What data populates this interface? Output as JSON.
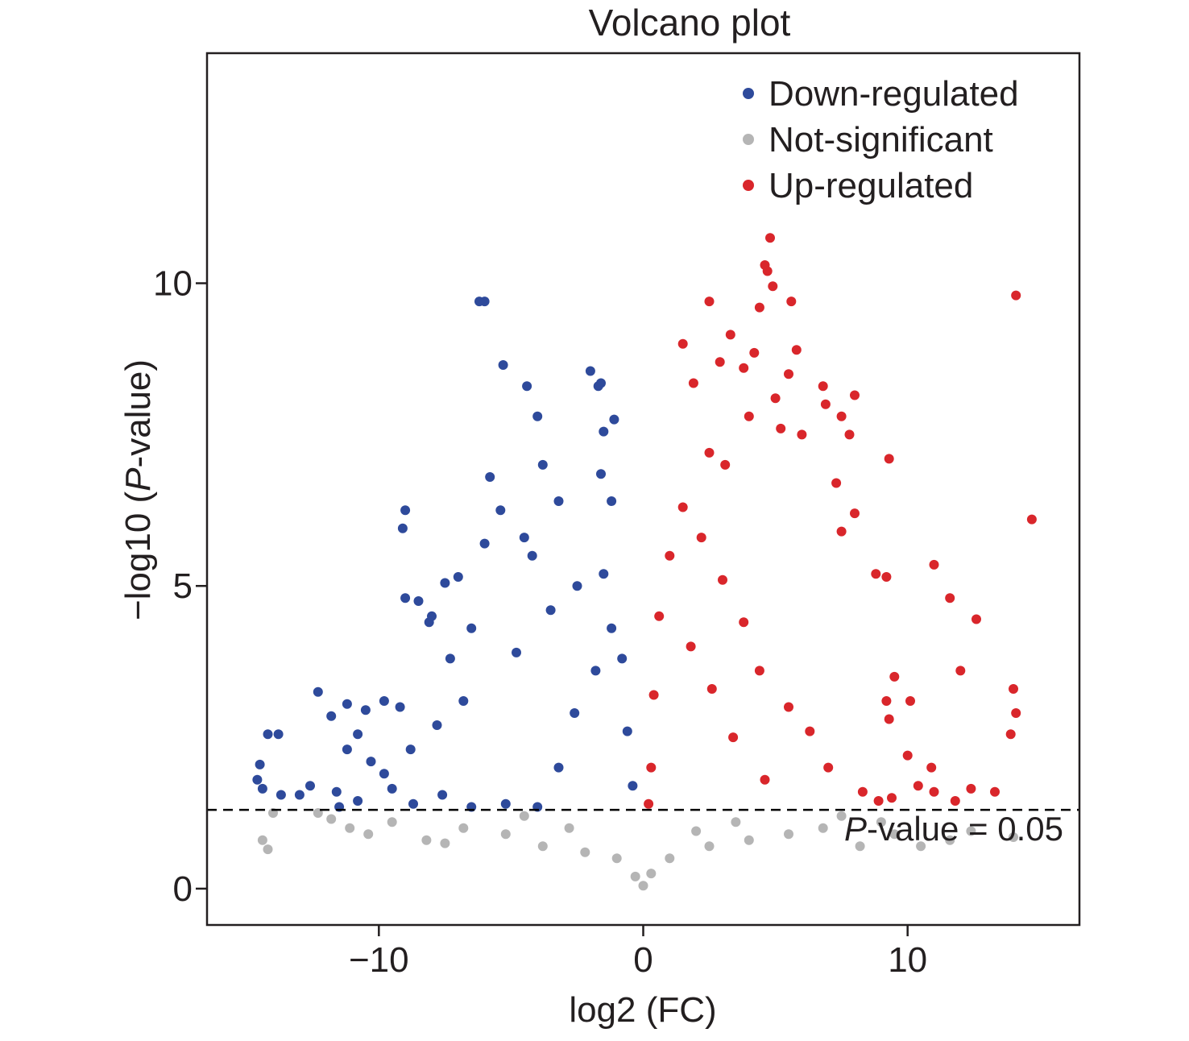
{
  "chart_data": {
    "type": "scatter",
    "title": "Volcano plot",
    "xlabel": "log2 (FC)",
    "ylabel_parts": [
      "−log10 (",
      "P",
      "-value)"
    ],
    "xlim": [
      -16.5,
      16.5
    ],
    "ylim": [
      -0.6,
      13.8
    ],
    "x_ticks": [
      -10,
      0,
      10
    ],
    "x_tick_labels": [
      "−10",
      "0",
      "10"
    ],
    "y_ticks": [
      0,
      5,
      10
    ],
    "y_tick_labels": [
      "0",
      "5",
      "10"
    ],
    "grid": false,
    "legend_position": "top-right",
    "threshold": {
      "y": 1.301,
      "style": "dashed",
      "label_parts": [
        "P",
        "-value = 0.05"
      ]
    },
    "series": [
      {
        "name": "Down-regulated",
        "color": "#2e4a9b",
        "sample_points": [
          [
            -14.2,
            2.55
          ],
          [
            -13.8,
            2.55
          ],
          [
            -14.5,
            2.05
          ],
          [
            -14.6,
            1.8
          ],
          [
            -14.4,
            1.65
          ],
          [
            -13.7,
            1.55
          ],
          [
            -12.3,
            3.25
          ],
          [
            -11.8,
            2.85
          ],
          [
            -11.2,
            3.05
          ],
          [
            -10.5,
            2.95
          ],
          [
            -9.8,
            3.1
          ],
          [
            -9.2,
            3.0
          ],
          [
            -9.0,
            4.8
          ],
          [
            -8.5,
            4.75
          ],
          [
            -8.1,
            4.4
          ],
          [
            -7.5,
            5.05
          ],
          [
            -7.0,
            5.15
          ],
          [
            -9.0,
            6.25
          ],
          [
            -9.1,
            5.95
          ],
          [
            -8.0,
            4.5
          ],
          [
            -6.0,
            9.7
          ],
          [
            -6.2,
            9.7
          ],
          [
            -5.3,
            8.65
          ],
          [
            -4.4,
            8.3
          ],
          [
            -4.0,
            7.8
          ],
          [
            -2.0,
            8.55
          ],
          [
            -1.6,
            8.35
          ],
          [
            -1.7,
            8.3
          ],
          [
            -1.1,
            7.75
          ],
          [
            -1.5,
            7.55
          ],
          [
            -3.8,
            7.0
          ],
          [
            -5.8,
            6.8
          ],
          [
            -1.6,
            6.85
          ],
          [
            -1.2,
            6.4
          ],
          [
            -3.2,
            6.4
          ],
          [
            -5.4,
            6.25
          ],
          [
            -4.5,
            5.8
          ],
          [
            -4.2,
            5.5
          ],
          [
            -6.0,
            5.7
          ],
          [
            -6.5,
            4.3
          ],
          [
            -7.3,
            3.8
          ],
          [
            -10.8,
            2.55
          ],
          [
            -11.2,
            2.3
          ],
          [
            -10.3,
            2.1
          ],
          [
            -9.5,
            1.65
          ],
          [
            -11.6,
            1.6
          ],
          [
            -12.6,
            1.7
          ],
          [
            -13.0,
            1.55
          ],
          [
            -11.5,
            1.35
          ],
          [
            -10.8,
            1.45
          ],
          [
            -8.7,
            1.4
          ],
          [
            -7.6,
            1.55
          ],
          [
            -6.5,
            1.35
          ],
          [
            -5.2,
            1.4
          ],
          [
            -4.0,
            1.35
          ],
          [
            -3.2,
            2.0
          ],
          [
            -2.6,
            2.9
          ],
          [
            -1.8,
            3.6
          ],
          [
            -1.2,
            4.3
          ],
          [
            -0.8,
            3.8
          ],
          [
            -0.6,
            2.6
          ],
          [
            -0.4,
            1.7
          ],
          [
            -1.5,
            5.2
          ],
          [
            -2.5,
            5.0
          ],
          [
            -3.5,
            4.6
          ],
          [
            -4.8,
            3.9
          ],
          [
            -6.8,
            3.1
          ],
          [
            -7.8,
            2.7
          ],
          [
            -8.8,
            2.3
          ],
          [
            -9.8,
            1.9
          ]
        ]
      },
      {
        "name": "Not-significant",
        "color": "#b5b5b5",
        "sample_points": [
          [
            -14.0,
            1.25
          ],
          [
            -14.4,
            0.8
          ],
          [
            -14.2,
            0.65
          ],
          [
            -12.3,
            1.25
          ],
          [
            -11.8,
            1.15
          ],
          [
            -11.1,
            1.0
          ],
          [
            -10.4,
            0.9
          ],
          [
            -9.5,
            1.1
          ],
          [
            -8.2,
            0.8
          ],
          [
            -6.8,
            1.0
          ],
          [
            -5.2,
            0.9
          ],
          [
            -3.8,
            0.7
          ],
          [
            -2.2,
            0.6
          ],
          [
            -1.0,
            0.5
          ],
          [
            -0.3,
            0.2
          ],
          [
            0.0,
            0.05
          ],
          [
            0.3,
            0.25
          ],
          [
            1.0,
            0.5
          ],
          [
            2.5,
            0.7
          ],
          [
            4.0,
            0.8
          ],
          [
            5.5,
            0.9
          ],
          [
            6.8,
            1.0
          ],
          [
            8.2,
            0.7
          ],
          [
            9.0,
            1.1
          ],
          [
            9.5,
            0.9
          ],
          [
            10.5,
            0.7
          ],
          [
            11.6,
            0.8
          ],
          [
            12.4,
            0.95
          ],
          [
            14.0,
            0.85
          ],
          [
            7.5,
            1.2
          ],
          [
            -4.5,
            1.2
          ],
          [
            -7.5,
            0.75
          ],
          [
            3.5,
            1.1
          ],
          [
            -2.8,
            1.0
          ],
          [
            2.0,
            0.95
          ]
        ]
      },
      {
        "name": "Up-regulated",
        "color": "#d9262b",
        "sample_points": [
          [
            4.8,
            10.75
          ],
          [
            4.6,
            10.3
          ],
          [
            4.7,
            10.2
          ],
          [
            4.9,
            9.95
          ],
          [
            4.4,
            9.6
          ],
          [
            2.5,
            9.7
          ],
          [
            5.6,
            9.7
          ],
          [
            3.3,
            9.15
          ],
          [
            1.5,
            9.0
          ],
          [
            14.1,
            9.8
          ],
          [
            2.9,
            8.7
          ],
          [
            4.2,
            8.85
          ],
          [
            3.8,
            8.6
          ],
          [
            5.8,
            8.9
          ],
          [
            1.9,
            8.35
          ],
          [
            5.5,
            8.5
          ],
          [
            6.8,
            8.3
          ],
          [
            6.9,
            8.0
          ],
          [
            8.0,
            8.15
          ],
          [
            7.5,
            7.8
          ],
          [
            5.0,
            8.1
          ],
          [
            4.0,
            7.8
          ],
          [
            5.2,
            7.6
          ],
          [
            6.0,
            7.5
          ],
          [
            7.8,
            7.5
          ],
          [
            9.3,
            7.1
          ],
          [
            2.5,
            7.2
          ],
          [
            3.1,
            7.0
          ],
          [
            14.7,
            6.1
          ],
          [
            7.3,
            6.7
          ],
          [
            8.0,
            6.2
          ],
          [
            7.5,
            5.9
          ],
          [
            11.0,
            5.35
          ],
          [
            9.2,
            5.15
          ],
          [
            8.8,
            5.2
          ],
          [
            12.0,
            3.6
          ],
          [
            11.6,
            4.8
          ],
          [
            12.6,
            4.45
          ],
          [
            9.5,
            3.5
          ],
          [
            9.2,
            3.1
          ],
          [
            10.1,
            3.1
          ],
          [
            14.0,
            3.3
          ],
          [
            14.1,
            2.9
          ],
          [
            13.9,
            2.55
          ],
          [
            9.3,
            2.8
          ],
          [
            10.0,
            2.2
          ],
          [
            10.4,
            1.7
          ],
          [
            10.9,
            2.0
          ],
          [
            11.0,
            1.6
          ],
          [
            12.4,
            1.65
          ],
          [
            13.3,
            1.6
          ],
          [
            11.8,
            1.45
          ],
          [
            9.4,
            1.5
          ],
          [
            8.9,
            1.45
          ],
          [
            8.3,
            1.6
          ],
          [
            7.0,
            2.0
          ],
          [
            6.3,
            2.6
          ],
          [
            5.5,
            3.0
          ],
          [
            4.4,
            3.6
          ],
          [
            3.8,
            4.4
          ],
          [
            3.0,
            5.1
          ],
          [
            2.2,
            5.8
          ],
          [
            1.5,
            6.3
          ],
          [
            1.0,
            5.5
          ],
          [
            0.6,
            4.5
          ],
          [
            0.4,
            3.2
          ],
          [
            0.3,
            2.0
          ],
          [
            0.2,
            1.4
          ],
          [
            1.8,
            4.0
          ],
          [
            2.6,
            3.3
          ],
          [
            3.4,
            2.5
          ],
          [
            4.6,
            1.8
          ]
        ]
      }
    ]
  }
}
